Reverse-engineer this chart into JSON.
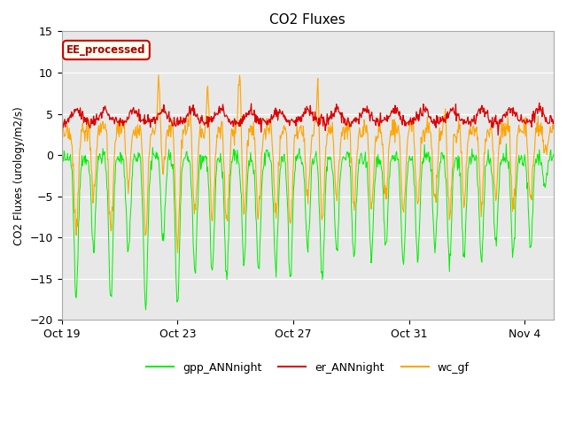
{
  "title": "CO2 Fluxes",
  "ylabel": "CO2 Fluxes (urology/m2/s)",
  "ylim": [
    -20,
    15
  ],
  "yticks": [
    -20,
    -15,
    -10,
    -5,
    0,
    5,
    10,
    15
  ],
  "background_color": "#ffffff",
  "plot_bg_color": "#e8e8e8",
  "annotation_text": "EE_processed",
  "annotation_bg": "#ffffee",
  "annotation_border": "#cc0000",
  "colors": {
    "gpp_ANNnight": "#00ee00",
    "er_ANNnight": "#dd0000",
    "wc_gf": "#ffa500"
  },
  "xtick_labels": [
    "Oct 19",
    "Oct 23",
    "Oct 27",
    "Oct 31",
    "Nov 4"
  ],
  "xtick_positions": [
    0,
    4,
    8,
    12,
    16
  ],
  "xlim": [
    0,
    17
  ],
  "n_days": 17,
  "n_points": 850
}
